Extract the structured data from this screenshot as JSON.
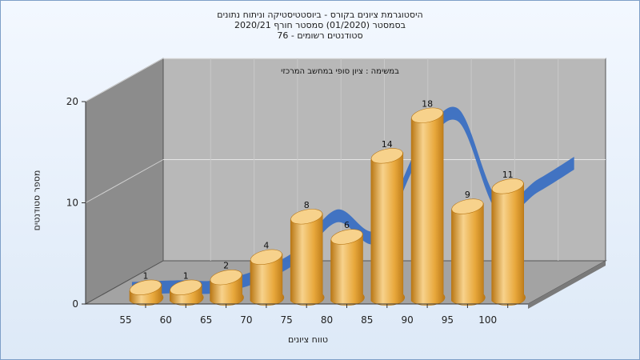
{
  "chart_data": {
    "type": "bar",
    "title_lines": [
      "היסטוגרמת ציונים בקורס - ביוסטטיסטיקה וניתוח נתונים",
      "בסמסטר  (01/2020)  סמסטר חורף  2020/21",
      "סטודנטים רשומים - 76"
    ],
    "legend_text": "במשימה : ציון סופי במחשב המרכזי",
    "xlabel": "טווח ציונים",
    "ylabel": "מספר סטודנטים",
    "categories": [
      "55",
      "60",
      "65",
      "70",
      "75",
      "80",
      "85",
      "90",
      "95",
      "100"
    ],
    "values": [
      1,
      1,
      2,
      4,
      8,
      6,
      14,
      18,
      9,
      11
    ],
    "y_ticks": [
      0,
      10,
      20
    ],
    "ylim": [
      0,
      20
    ],
    "trend_line": true,
    "colors": {
      "bar": "#e8a83c",
      "bar_dark": "#b97715",
      "bar_light": "#f7d28c",
      "trend": "#3a6fc2",
      "back_wall": "#b8b8b8",
      "side_wall": "#8c8c8c",
      "floor": "#a3a3a3"
    }
  }
}
